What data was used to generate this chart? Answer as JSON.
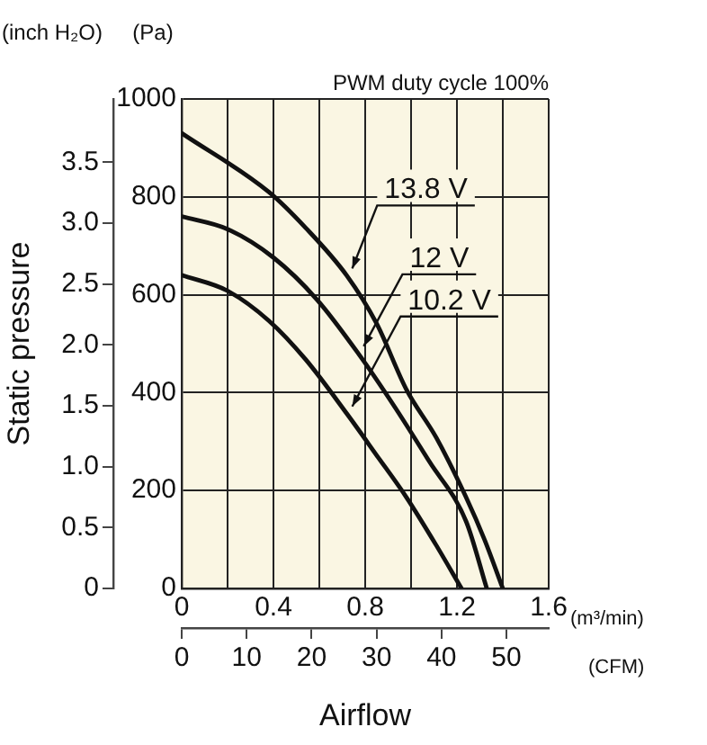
{
  "chart_data": {
    "type": "line",
    "title": "PWM duty cycle 100%",
    "xlabel": "(m³/min)",
    "x2label": "(CFM)",
    "ylabel": "(Pa)",
    "y2label": "(inch H₂O)",
    "annotations": [
      "Static pressure",
      "Airflow"
    ],
    "xlim": [
      0,
      1.6
    ],
    "xticks": [
      0,
      {
        "value": 0.2,
        "label": null
      },
      0.4,
      {
        "value": 0.6,
        "label": null
      },
      0.8,
      {
        "value": 1.0,
        "label": null
      },
      1.2,
      {
        "value": 1.4,
        "label": null
      },
      1.6
    ],
    "ylim": [
      0,
      1000
    ],
    "yticks": [
      0,
      200,
      400,
      600,
      800,
      1000
    ],
    "x2lim": [
      0,
      56.5
    ],
    "x2ticks": [
      0,
      10,
      20,
      30,
      40,
      50
    ],
    "y2lim": [
      0,
      4.02
    ],
    "y2ticks": [
      0,
      0.5,
      {
        "value": 1,
        "label": "1.0"
      },
      1.5,
      {
        "value": 2,
        "label": "2.0"
      },
      2.5,
      {
        "value": 3,
        "label": "3.0"
      },
      3.5
    ],
    "grid": true,
    "legend": "right",
    "marker": "none",
    "line_style": "solid",
    "series": [
      {
        "name": "13.8 V",
        "color": "#111111",
        "x": [
          0,
          0.38,
          0.54,
          0.72,
          0.85,
          0.98,
          1.11,
          1.24,
          1.32,
          1.4
        ],
        "values": [
          930,
          810,
          737,
          639,
          541,
          406,
          308,
          186,
          100,
          0
        ]
      },
      {
        "name": "12 V",
        "color": "#111111",
        "x": [
          0,
          0.2,
          0.4,
          0.59,
          0.77,
          0.93,
          1.08,
          1.24,
          1.33
        ],
        "values": [
          760,
          734,
          676,
          590,
          480,
          370,
          259,
          137,
          0
        ]
      },
      {
        "name": "10.2 V",
        "color": "#111111",
        "x": [
          0,
          0.2,
          0.38,
          0.54,
          0.72,
          0.85,
          0.98,
          1.11,
          1.22
        ],
        "values": [
          640,
          608,
          547,
          468,
          357,
          272,
          186,
          88,
          0
        ]
      }
    ]
  }
}
